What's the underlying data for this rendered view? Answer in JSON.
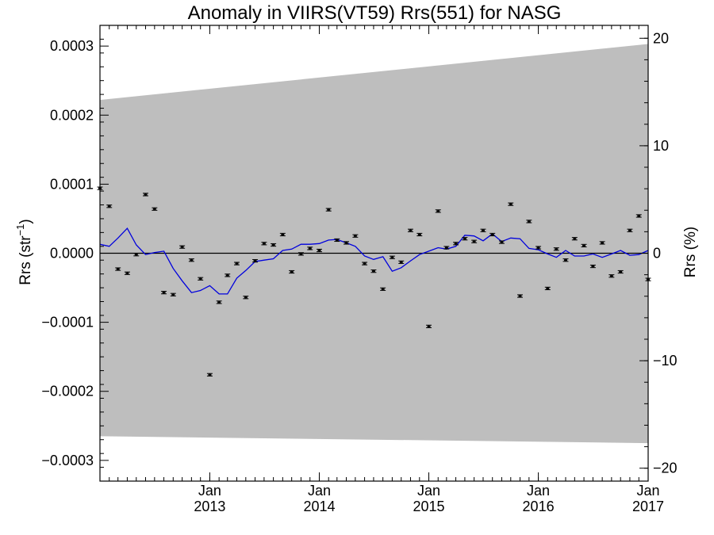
{
  "chart_data": {
    "type": "line",
    "title": "Anomaly in VIIRS(VT59) Rrs(551) for NASG",
    "ylabel_left": "Rrs (str",
    "ylabel_left_sup": "−1",
    "ylabel_left_close": ")",
    "ylabel_right": "Rrs (%)",
    "x_axis": {
      "type": "date",
      "range": [
        "2012-01-01",
        "2017-01-01"
      ],
      "ticks": [
        {
          "date": "2013-01-01",
          "month": "Jan",
          "year": "2013"
        },
        {
          "date": "2014-01-01",
          "month": "Jan",
          "year": "2014"
        },
        {
          "date": "2015-01-01",
          "month": "Jan",
          "year": "2015"
        },
        {
          "date": "2016-01-01",
          "month": "Jan",
          "year": "2016"
        },
        {
          "date": "2017-01-01",
          "month": "Jan",
          "year": "2017"
        }
      ]
    },
    "y_left": {
      "range": [
        -0.00033,
        0.00033
      ],
      "ticks": [
        {
          "value": 0.0003,
          "label": "0.0003"
        },
        {
          "value": 0.0002,
          "label": "0.0002"
        },
        {
          "value": 0.0001,
          "label": "0.0001"
        },
        {
          "value": 0.0,
          "label": "0.0000"
        },
        {
          "value": -0.0001,
          "label": "−0.0001"
        },
        {
          "value": -0.0002,
          "label": "−0.0002"
        },
        {
          "value": -0.0003,
          "label": "−0.0003"
        }
      ]
    },
    "y_right": {
      "range": [
        -21.2,
        21.2
      ],
      "ticks": [
        {
          "value": 20,
          "label": "20"
        },
        {
          "value": 10,
          "label": "10"
        },
        {
          "value": 0,
          "label": "0"
        },
        {
          "value": -10,
          "label": "−10"
        },
        {
          "value": -20,
          "label": "−20"
        }
      ]
    },
    "band": {
      "color": "#bebebe",
      "start": {
        "date": "2012-01-01",
        "upper": 0.000222,
        "lower": -0.000265
      },
      "end": {
        "date": "2017-01-01",
        "upper": 0.000303,
        "lower": -0.000275
      }
    },
    "reference_line": {
      "value": 0.0,
      "color": "#000000"
    },
    "series": [
      {
        "kind": "points",
        "color": "#000000",
        "x": [
          "2012-01-01",
          "2012-02-01",
          "2012-03-01",
          "2012-04-01",
          "2012-05-01",
          "2012-06-01",
          "2012-07-01",
          "2012-08-01",
          "2012-09-01",
          "2012-10-01",
          "2012-11-01",
          "2012-12-01",
          "2013-01-01",
          "2013-02-01",
          "2013-03-01",
          "2013-04-01",
          "2013-05-01",
          "2013-06-01",
          "2013-07-01",
          "2013-08-01",
          "2013-09-01",
          "2013-10-01",
          "2013-11-01",
          "2013-12-01",
          "2014-01-01",
          "2014-02-01",
          "2014-03-01",
          "2014-04-01",
          "2014-05-01",
          "2014-06-01",
          "2014-07-01",
          "2014-08-01",
          "2014-09-01",
          "2014-10-01",
          "2014-11-01",
          "2014-12-01",
          "2015-01-01",
          "2015-02-01",
          "2015-03-01",
          "2015-04-01",
          "2015-05-01",
          "2015-06-01",
          "2015-07-01",
          "2015-08-01",
          "2015-09-01",
          "2015-10-01",
          "2015-11-01",
          "2015-12-01",
          "2016-01-01",
          "2016-02-01",
          "2016-03-01",
          "2016-04-01",
          "2016-05-01",
          "2016-06-01",
          "2016-07-01",
          "2016-08-01",
          "2016-09-01",
          "2016-10-01",
          "2016-11-01",
          "2016-12-01",
          "2017-01-01"
        ],
        "y": [
          9.4e-05,
          6.8e-05,
          -2.3e-05,
          -2.9e-05,
          -2e-06,
          8.5e-05,
          6.4e-05,
          -5.7e-05,
          -6e-05,
          9e-06,
          -1e-05,
          -3.7e-05,
          -0.000176,
          -7.1e-05,
          -3.2e-05,
          -1.5e-05,
          -6.4e-05,
          -1.1e-05,
          1.4e-05,
          1.2e-05,
          2.7e-05,
          -2.7e-05,
          -1e-06,
          7e-06,
          4e-06,
          6.3e-05,
          1.9e-05,
          1.5e-05,
          2.5e-05,
          -1.5e-05,
          -2.6e-05,
          -5.2e-05,
          -6e-06,
          -1.3e-05,
          3.3e-05,
          2.7e-05,
          -0.000106,
          6.1e-05,
          8e-06,
          1.4e-05,
          2.1e-05,
          1.7e-05,
          3.3e-05,
          2.7e-05,
          1.6e-05,
          7.1e-05,
          -6.2e-05,
          4.6e-05,
          8e-06,
          -5.1e-05,
          6e-06,
          -1e-05,
          2.1e-05,
          1.1e-05,
          -1.9e-05,
          1.5e-05,
          -3.3e-05,
          -2.7e-05,
          3.3e-05,
          5.4e-05,
          -3.8e-05
        ]
      },
      {
        "kind": "line",
        "color": "#0000dd",
        "x": [
          "2012-01-01",
          "2012-02-01",
          "2012-03-01",
          "2012-04-01",
          "2012-05-01",
          "2012-06-01",
          "2012-07-01",
          "2012-08-01",
          "2012-09-01",
          "2012-10-01",
          "2012-11-01",
          "2012-12-01",
          "2013-01-01",
          "2013-02-01",
          "2013-03-01",
          "2013-04-01",
          "2013-05-01",
          "2013-06-01",
          "2013-07-01",
          "2013-08-01",
          "2013-09-01",
          "2013-10-01",
          "2013-11-01",
          "2013-12-01",
          "2014-01-01",
          "2014-02-01",
          "2014-03-01",
          "2014-04-01",
          "2014-05-01",
          "2014-06-01",
          "2014-07-01",
          "2014-08-01",
          "2014-09-01",
          "2014-10-01",
          "2014-11-01",
          "2014-12-01",
          "2015-01-01",
          "2015-02-01",
          "2015-03-01",
          "2015-04-01",
          "2015-05-01",
          "2015-06-01",
          "2015-07-01",
          "2015-08-01",
          "2015-09-01",
          "2015-10-01",
          "2015-11-01",
          "2015-12-01",
          "2016-01-01",
          "2016-02-01",
          "2016-03-01",
          "2016-04-01",
          "2016-05-01",
          "2016-06-01",
          "2016-07-01",
          "2016-08-01",
          "2016-09-01",
          "2016-10-01",
          "2016-11-01",
          "2016-12-01",
          "2017-01-01"
        ],
        "y": [
          1.3e-05,
          1e-05,
          2.2e-05,
          3.6e-05,
          1.2e-05,
          -2e-06,
          1e-06,
          3e-06,
          -2.2e-05,
          -4e-05,
          -5.7e-05,
          -5.4e-05,
          -4.7e-05,
          -5.9e-05,
          -5.9e-05,
          -3.6e-05,
          -2.5e-05,
          -1.2e-05,
          -1e-05,
          -8e-06,
          4e-06,
          6e-06,
          1.3e-05,
          1.3e-05,
          1.4e-05,
          1.9e-05,
          2e-05,
          1.5e-05,
          1e-05,
          -4e-06,
          -9e-06,
          -5e-06,
          -2.6e-05,
          -2.1e-05,
          -1.1e-05,
          -2e-06,
          3e-06,
          8e-06,
          6e-06,
          1e-05,
          2.6e-05,
          2.5e-05,
          1.8e-05,
          2.8e-05,
          1.7e-05,
          2.2e-05,
          2.1e-05,
          7e-06,
          5e-06,
          -1e-06,
          -6e-06,
          4e-06,
          -4e-06,
          -4e-06,
          -1e-06,
          -6e-06,
          -1e-06,
          4e-06,
          -3e-06,
          -2e-06,
          4e-06
        ]
      }
    ]
  }
}
